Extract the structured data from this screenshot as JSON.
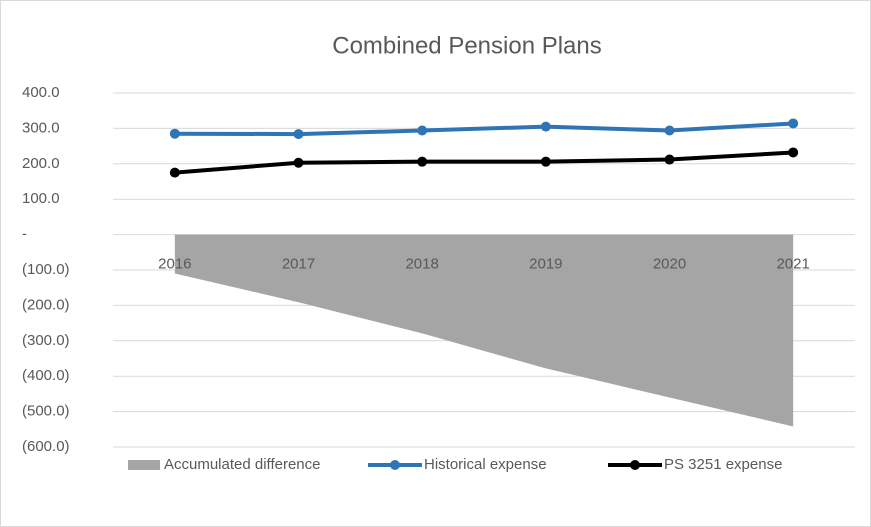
{
  "chart_data": {
    "type": "line",
    "title": "Combined Pension Plans",
    "categories": [
      "2016",
      "2017",
      "2018",
      "2019",
      "2020",
      "2021"
    ],
    "series": [
      {
        "name": "Accumulated difference",
        "type": "area",
        "color": "#a5a5a5",
        "values": [
          -110,
          -191,
          -279,
          -378,
          -460,
          -542
        ]
      },
      {
        "name": "Historical expense",
        "type": "line",
        "color": "#2e75b6",
        "values": [
          285,
          284,
          294,
          305,
          294,
          314
        ]
      },
      {
        "name": "PS 3251 expense",
        "type": "line",
        "color": "#000000",
        "values": [
          175,
          203,
          206,
          206,
          212,
          232
        ]
      }
    ],
    "ylim": [
      -600,
      400
    ],
    "yticks": [
      {
        "value": -600,
        "label": "(600.0)"
      },
      {
        "value": -500,
        "label": "(500.0)"
      },
      {
        "value": -400,
        "label": "(400.0)"
      },
      {
        "value": -300,
        "label": "(300.0)"
      },
      {
        "value": -200,
        "label": "(200.0)"
      },
      {
        "value": -100,
        "label": "(100.0)"
      },
      {
        "value": 0,
        "label": "-"
      },
      {
        "value": 100,
        "label": "100.0"
      },
      {
        "value": 200,
        "label": "200.0"
      },
      {
        "value": 300,
        "label": "300.0"
      },
      {
        "value": 400,
        "label": "400.0"
      }
    ],
    "grid": true,
    "legend": "bottom"
  }
}
